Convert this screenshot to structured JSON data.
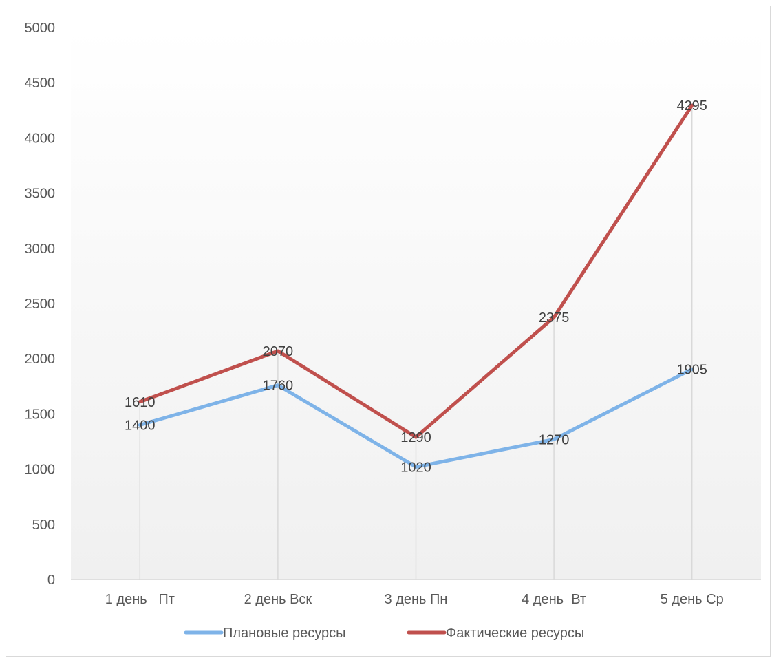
{
  "chart_data": {
    "type": "line",
    "title": "",
    "xlabel": "",
    "ylabel": "",
    "categories": [
      "1 день   Пт",
      "2 день Вск",
      "3 день Пн",
      "4 день  Вт",
      "5 день Ср"
    ],
    "ylim": [
      0,
      5000
    ],
    "yticks": [
      0,
      500,
      1000,
      1500,
      2000,
      2500,
      3000,
      3500,
      4000,
      4500,
      5000
    ],
    "series": [
      {
        "name": "Плановые ресурсы",
        "values": [
          1400,
          1760,
          1020,
          1270,
          1905
        ],
        "color": "#7eb3e8"
      },
      {
        "name": "Фактические ресурсы",
        "values": [
          1610,
          2070,
          1290,
          2375,
          4295
        ],
        "color": "#c0504d"
      }
    ],
    "grid": "vertical drop lines",
    "legend": "bottom",
    "data_labels": true
  }
}
